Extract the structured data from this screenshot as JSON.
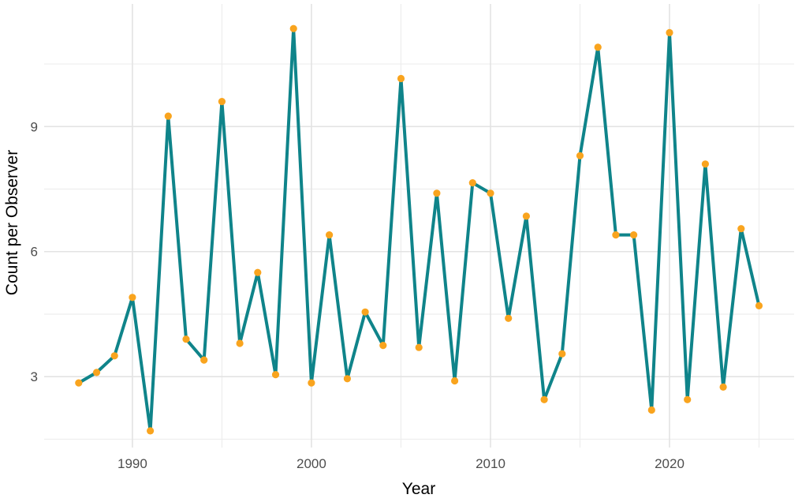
{
  "chart_data": {
    "type": "line",
    "title": "",
    "xlabel": "Year",
    "ylabel": "Count per Observer",
    "legend": "none",
    "grid": "major+minor",
    "marker": "circle",
    "xlim": [
      1985.07,
      2026.96
    ],
    "ylim": [
      1.3,
      11.94
    ],
    "x_ticks": {
      "major": [
        1990,
        2000,
        2010,
        2020
      ],
      "labels": [
        "1990",
        "2000",
        "2010",
        "2020"
      ],
      "minor": [
        1995,
        2005,
        2015,
        2025
      ]
    },
    "y_ticks": {
      "major": [
        3,
        6,
        9
      ],
      "labels": [
        "3",
        "6",
        "9"
      ],
      "minor": [
        1.5,
        4.5,
        7.5,
        10.5
      ]
    },
    "series": [
      {
        "name": "Count per Observer",
        "x": [
          1987,
          1988,
          1989,
          1990,
          1991,
          1992,
          1993,
          1994,
          1995,
          1996,
          1997,
          1998,
          1999,
          2000,
          2001,
          2002,
          2003,
          2004,
          2005,
          2006,
          2007,
          2008,
          2009,
          2010,
          2011,
          2012,
          2013,
          2014,
          2015,
          2016,
          2017,
          2018,
          2019,
          2020,
          2021,
          2022,
          2023,
          2024,
          2025
        ],
        "y": [
          2.85,
          3.1,
          3.5,
          4.9,
          1.7,
          9.25,
          3.9,
          3.4,
          9.6,
          3.8,
          5.5,
          3.05,
          11.35,
          2.85,
          6.4,
          2.95,
          4.55,
          3.75,
          10.15,
          3.7,
          7.4,
          2.9,
          7.65,
          7.4,
          4.4,
          6.85,
          2.45,
          3.55,
          8.3,
          10.9,
          6.4,
          6.4,
          2.2,
          11.25,
          2.45,
          8.1,
          2.75,
          6.55,
          4.7
        ]
      }
    ],
    "colors": {
      "line": "#0F848A",
      "point": "#F9A41E",
      "grid_major": "#E3E3E3",
      "grid_minor": "#EDEDED",
      "tick_label": "#4D4D4D",
      "axis_title": "#000000",
      "background": "#FFFFFF"
    }
  }
}
